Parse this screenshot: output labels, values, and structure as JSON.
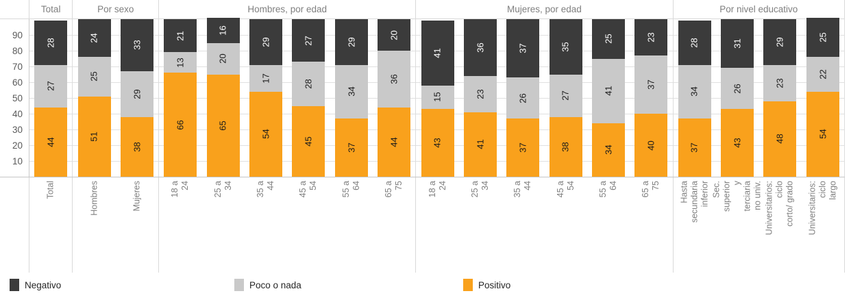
{
  "chart_data": {
    "type": "bar",
    "stacked": true,
    "orientation": "vertical",
    "title": "",
    "ylabel": "",
    "xlabel": "",
    "ylim": [
      0,
      100
    ],
    "y_ticks": [
      90,
      80,
      70,
      60,
      50,
      40,
      30,
      20,
      10
    ],
    "grid": true,
    "legend_position": "bottom",
    "series": [
      {
        "name": "Positivo",
        "color": "#F9A11C",
        "label_color": "#1a1a1a"
      },
      {
        "name": "Poco o nada",
        "color": "#C9C9C9",
        "label_color": "#1a1a1a"
      },
      {
        "name": "Negativo",
        "color": "#3B3B3B",
        "label_color": "#FFFFFF"
      }
    ],
    "legend": [
      "Negativo",
      "Poco o nada",
      "Positivo"
    ],
    "groups": [
      {
        "label": "Total",
        "categories": [
          "Total"
        ],
        "values": [
          [
            44,
            27,
            28
          ]
        ]
      },
      {
        "label": "Por sexo",
        "categories": [
          "Hombres",
          "Mujeres"
        ],
        "values": [
          [
            51,
            25,
            24
          ],
          [
            38,
            29,
            33
          ]
        ]
      },
      {
        "label": "Hombres, por edad",
        "categories": [
          "18 a 24",
          "25 a 34",
          "35 a 44",
          "45 a 54",
          "55 a 64",
          "65 a 75"
        ],
        "values": [
          [
            66,
            13,
            21
          ],
          [
            65,
            20,
            16
          ],
          [
            54,
            17,
            29
          ],
          [
            45,
            28,
            27
          ],
          [
            37,
            34,
            29
          ],
          [
            44,
            36,
            20
          ]
        ]
      },
      {
        "label": "Mujeres, por edad",
        "categories": [
          "18 a 24",
          "25 a 34",
          "35 a 44",
          "45 a 54",
          "55 a 64",
          "65 a 75"
        ],
        "values": [
          [
            43,
            15,
            41
          ],
          [
            41,
            23,
            36
          ],
          [
            37,
            26,
            37
          ],
          [
            38,
            27,
            35
          ],
          [
            34,
            41,
            25
          ],
          [
            40,
            37,
            23
          ]
        ]
      },
      {
        "label": "Por nivel educativo",
        "categories": [
          "Hasta secundaria\ninferior",
          "Sec. superior y\nterciaria no univ.",
          "Universitarios: ciclo\ncorto/ grado",
          "Universitarios: ciclo\nlargo"
        ],
        "values": [
          [
            37,
            34,
            28
          ],
          [
            43,
            26,
            31
          ],
          [
            48,
            23,
            29
          ],
          [
            54,
            22,
            25
          ]
        ]
      }
    ]
  }
}
